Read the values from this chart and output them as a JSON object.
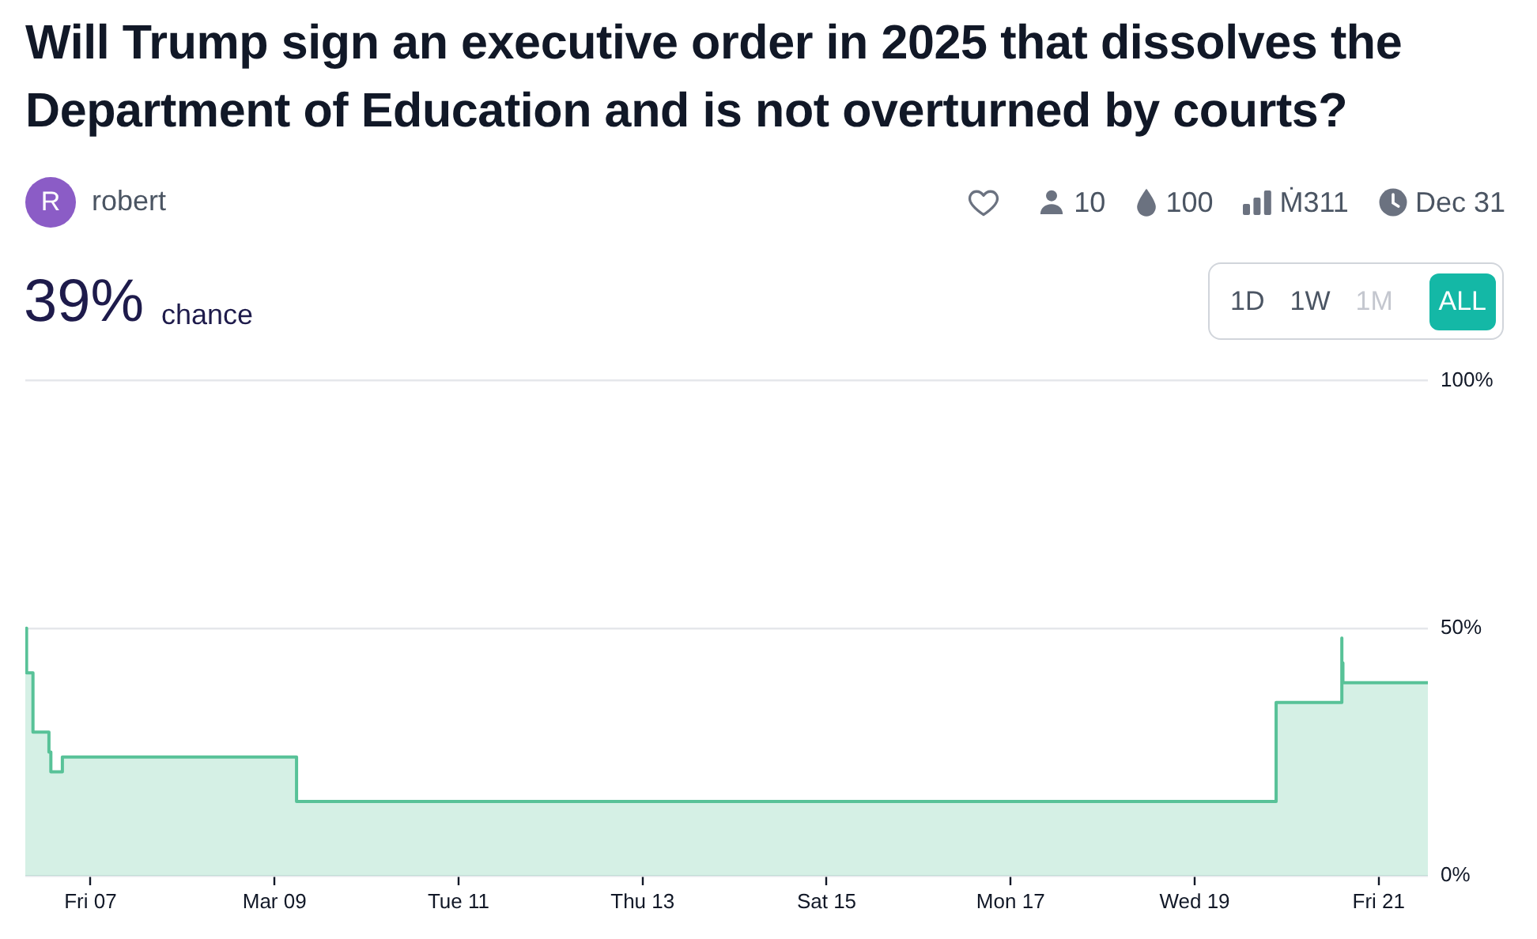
{
  "chart_data": {
    "type": "area",
    "title": "Will Trump sign an executive order in 2025 that dissolves the Department of Education and is not overturned by courts?",
    "annotations": [
      "R",
      "robert",
      "10",
      "100",
      "Ṁ311",
      "Dec 31",
      "39%",
      "chance",
      "1D",
      "1W",
      "1M",
      "ALL"
    ],
    "x": [
      "2025-03-06T07:00",
      "2025-03-06T07:20",
      "2025-03-06T07:20",
      "2025-03-06T09:00",
      "2025-03-06T09:00",
      "2025-03-06T13:10",
      "2025-03-06T13:10",
      "2025-03-06T13:40",
      "2025-03-06T13:40",
      "2025-03-06T16:40",
      "2025-03-06T16:40",
      "2025-03-09T05:45",
      "2025-03-09T05:45",
      "2025-03-19T21:15",
      "2025-03-19T21:15",
      "2025-03-20T14:10",
      "2025-03-20T14:10",
      "2025-03-20T14:30",
      "2025-03-20T14:30",
      "2025-03-20T14:40",
      "2025-03-20T14:40",
      "2025-03-21T12:50"
    ],
    "series": [
      {
        "color": "#58c298",
        "values": [
          50,
          50,
          41,
          41,
          29,
          29,
          25,
          25,
          21,
          21,
          24,
          24,
          15,
          15,
          35,
          35,
          48,
          48,
          43,
          43,
          39,
          39
        ]
      }
    ],
    "xlim": [
      "2025-03-06T07:00",
      "2025-03-21T12:50"
    ],
    "xticks": [
      {
        "value": "2025-03-07",
        "label": "Fri 07"
      },
      {
        "value": "2025-03-09",
        "label": "Mar 09"
      },
      {
        "value": "2025-03-11",
        "label": "Tue 11"
      },
      {
        "value": "2025-03-13",
        "label": "Thu 13"
      },
      {
        "value": "2025-03-15",
        "label": "Sat 15"
      },
      {
        "value": "2025-03-17",
        "label": "Mon 17"
      },
      {
        "value": "2025-03-19",
        "label": "Wed 19"
      },
      {
        "value": "2025-03-21",
        "label": "Fri 21"
      }
    ],
    "ylim": [
      0,
      100
    ],
    "yticks": [
      {
        "value": 0,
        "label": "0%"
      },
      {
        "value": 50,
        "label": "50%"
      },
      {
        "value": 100,
        "label": "100%"
      }
    ],
    "grid": "y"
  }
}
